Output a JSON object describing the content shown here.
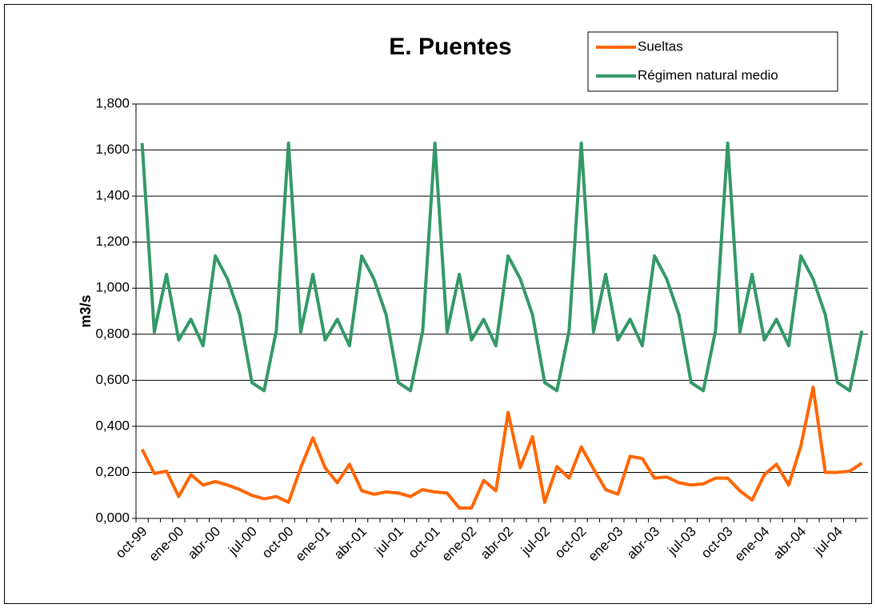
{
  "chart_data": {
    "type": "line",
    "title": "E. Puentes",
    "y_label": "m3/s",
    "categories": [
      "oct-99",
      null,
      null,
      "ene-00",
      null,
      null,
      "abr-00",
      null,
      null,
      "jul-00",
      null,
      null,
      "oct-00",
      null,
      null,
      "ene-01",
      null,
      null,
      "abr-01",
      null,
      null,
      "jul-01",
      null,
      null,
      "oct-01",
      null,
      null,
      "ene-02",
      null,
      null,
      "abr-02",
      null,
      null,
      "jul-02",
      null,
      null,
      "oct-02",
      null,
      null,
      "ene-03",
      null,
      null,
      "abr-03",
      null,
      null,
      "jul-03",
      null,
      null,
      "oct-03",
      null,
      null,
      "ene-04",
      null,
      null,
      "abr-04",
      null,
      null,
      "jul-04",
      null,
      null
    ],
    "series": [
      {
        "name": "Sueltas",
        "color": "#ff6600",
        "values": [
          0.3,
          0.195,
          0.205,
          0.095,
          0.19,
          0.145,
          0.16,
          0.145,
          0.125,
          0.1,
          0.085,
          0.095,
          0.07,
          0.22,
          0.35,
          0.22,
          0.155,
          0.235,
          0.12,
          0.105,
          0.115,
          0.11,
          0.095,
          0.125,
          0.115,
          0.11,
          0.045,
          0.045,
          0.165,
          0.12,
          0.46,
          0.22,
          0.355,
          0.07,
          0.225,
          0.175,
          0.31,
          0.215,
          0.125,
          0.105,
          0.27,
          0.26,
          0.175,
          0.18,
          0.155,
          0.145,
          0.15,
          0.175,
          0.175,
          0.12,
          0.08,
          0.19,
          0.235,
          0.145,
          0.315,
          0.57,
          0.2,
          0.2,
          0.205,
          0.24
        ]
      },
      {
        "name": "Régimen natural medio",
        "color": "#339966",
        "values": [
          1.63,
          0.81,
          1.06,
          0.775,
          0.865,
          0.75,
          1.14,
          1.04,
          0.885,
          0.59,
          0.555,
          0.815,
          1.63,
          0.81,
          1.06,
          0.775,
          0.865,
          0.75,
          1.14,
          1.04,
          0.885,
          0.59,
          0.555,
          0.815,
          1.63,
          0.81,
          1.06,
          0.775,
          0.865,
          0.75,
          1.14,
          1.04,
          0.885,
          0.59,
          0.555,
          0.815,
          1.63,
          0.81,
          1.06,
          0.775,
          0.865,
          0.75,
          1.14,
          1.04,
          0.885,
          0.59,
          0.555,
          0.815,
          1.63,
          0.81,
          1.06,
          0.775,
          0.865,
          0.75,
          1.14,
          1.04,
          0.885,
          0.59,
          0.555,
          0.815
        ]
      }
    ],
    "ylim": [
      0,
      1.8
    ],
    "yticks": [
      {
        "value": 0,
        "label": "0,000"
      },
      {
        "value": 0.2,
        "label": "0,200"
      },
      {
        "value": 0.4,
        "label": "0,400"
      },
      {
        "value": 0.6,
        "label": "0,600"
      },
      {
        "value": 0.8,
        "label": "0,800"
      },
      {
        "value": 1.0,
        "label": "1,000"
      },
      {
        "value": 1.2,
        "label": "1,200"
      },
      {
        "value": 1.4,
        "label": "1,400"
      },
      {
        "value": 1.6,
        "label": "1,600"
      },
      {
        "value": 1.8,
        "label": "1,800"
      }
    ],
    "grid": true,
    "legend": "top-right"
  }
}
